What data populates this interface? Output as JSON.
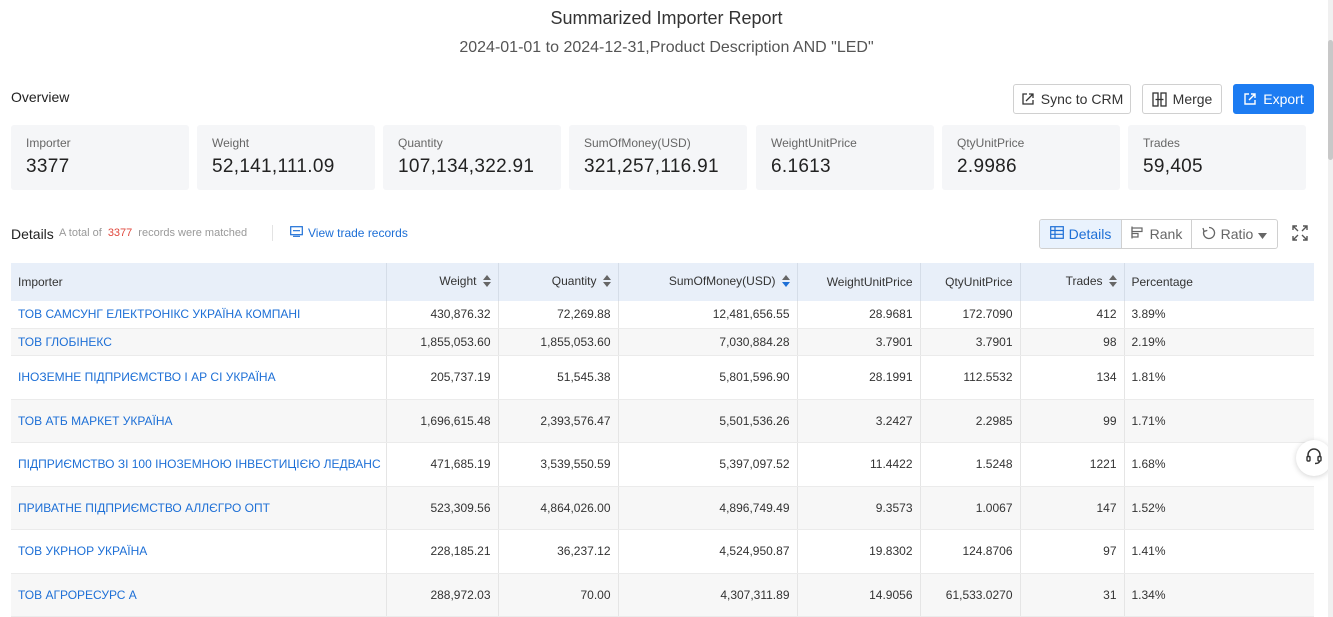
{
  "report": {
    "title": "Summarized Importer Report",
    "subtitle": "2024-01-01 to 2024-12-31,Product Description AND \"LED\""
  },
  "overview": {
    "label": "Overview",
    "buttons": {
      "sync": {
        "label": "Sync to CRM",
        "icon": "sync-icon"
      },
      "merge": {
        "label": "Merge",
        "icon": "merge-icon"
      },
      "export": {
        "label": "Export",
        "icon": "export-icon"
      }
    },
    "stats": [
      {
        "label": "Importer",
        "value": "3377"
      },
      {
        "label": "Weight",
        "value": "52,141,111.09"
      },
      {
        "label": "Quantity",
        "value": "107,134,322.91"
      },
      {
        "label": "SumOfMoney(USD)",
        "value": "321,257,116.91"
      },
      {
        "label": "WeightUnitPrice",
        "value": "6.1613"
      },
      {
        "label": "QtyUnitPrice",
        "value": "2.9986"
      },
      {
        "label": "Trades",
        "value": "59,405"
      }
    ]
  },
  "details": {
    "label": "Details",
    "total_prefix": "A total of",
    "total_count": "3377",
    "total_suffix": "records were matched",
    "view_link": "View trade records",
    "view_tabs": {
      "details": "Details",
      "rank": "Rank",
      "ratio": "Ratio"
    }
  },
  "table": {
    "columns": {
      "importer": "Importer",
      "weight": "Weight",
      "quantity": "Quantity",
      "sum": "SumOfMoney(USD)",
      "wup": "WeightUnitPrice",
      "qup": "QtyUnitPrice",
      "trades": "Trades",
      "pct": "Percentage"
    },
    "rows": [
      {
        "importer": "ТОВ САМСУНГ ЕЛЕКТРОНІКС УКРАЇНА КОМПАНІ",
        "weight": "430,876.32",
        "quantity": "72,269.88",
        "sum": "12,481,656.55",
        "wup": "28.9681",
        "qup": "172.7090",
        "trades": "412",
        "pct": "3.89%"
      },
      {
        "importer": "ТОВ ГЛОБІНЕКС",
        "weight": "1,855,053.60",
        "quantity": "1,855,053.60",
        "sum": "7,030,884.28",
        "wup": "3.7901",
        "qup": "3.7901",
        "trades": "98",
        "pct": "2.19%"
      },
      {
        "importer": "ІНОЗЕМНЕ ПІДПРИЄМСТВО І АР СІ УКРАЇНА",
        "weight": "205,737.19",
        "quantity": "51,545.38",
        "sum": "5,801,596.90",
        "wup": "28.1991",
        "qup": "112.5532",
        "trades": "134",
        "pct": "1.81%"
      },
      {
        "importer": "ТОВ АТБ МАРКЕТ УКРАЇНА",
        "weight": "1,696,615.48",
        "quantity": "2,393,576.47",
        "sum": "5,501,536.26",
        "wup": "3.2427",
        "qup": "2.2985",
        "trades": "99",
        "pct": "1.71%"
      },
      {
        "importer": "ПІДПРИЄМСТВО ЗІ 100 ІНОЗЕМНОЮ ІНВЕСТИЦІЄЮ ЛЕДВАНС",
        "weight": "471,685.19",
        "quantity": "3,539,550.59",
        "sum": "5,397,097.52",
        "wup": "11.4422",
        "qup": "1.5248",
        "trades": "1221",
        "pct": "1.68%"
      },
      {
        "importer": "ПРИВАТНЕ ПІДПРИЄМСТВО АЛЛЄГРО ОПТ",
        "weight": "523,309.56",
        "quantity": "4,864,026.00",
        "sum": "4,896,749.49",
        "wup": "9.3573",
        "qup": "1.0067",
        "trades": "147",
        "pct": "1.52%"
      },
      {
        "importer": "ТОВ УКРНОР УКРАЇНА",
        "weight": "228,185.21",
        "quantity": "36,237.12",
        "sum": "4,524,950.87",
        "wup": "19.8302",
        "qup": "124.8706",
        "trades": "97",
        "pct": "1.41%"
      },
      {
        "importer": "ТОВ АГРОРЕСУРС А",
        "weight": "288,972.03",
        "quantity": "70.00",
        "sum": "4,307,311.89",
        "wup": "14.9056",
        "qup": "61,533.0270",
        "trades": "31",
        "pct": "1.34%"
      }
    ]
  },
  "colors": {
    "accent": "#1d7cf2",
    "link": "#1d6fd6",
    "count_highlight": "#e0473c",
    "header_bg": "#e8eff9"
  }
}
